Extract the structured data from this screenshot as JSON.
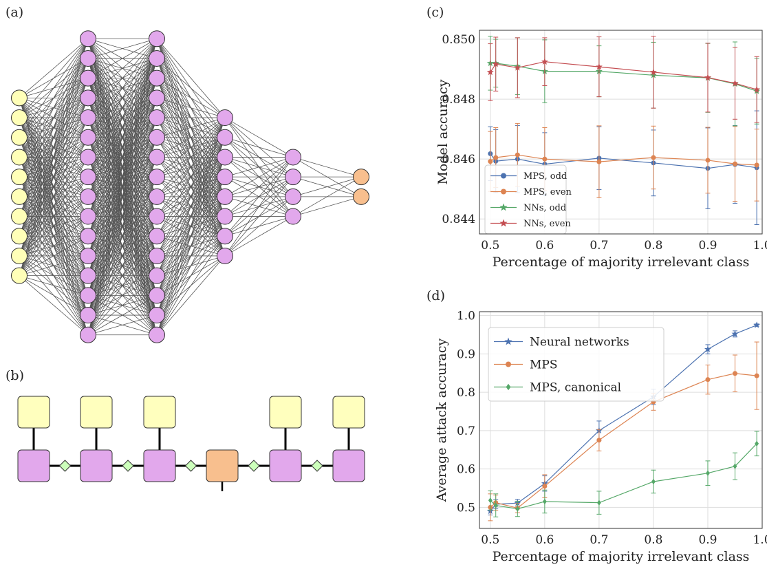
{
  "panels": {
    "a": "(a)",
    "b": "(b)",
    "c": "(c)",
    "d": "(d)"
  },
  "network": {
    "layers": [
      10,
      16,
      16,
      8,
      4,
      2
    ],
    "colors": {
      "input": "#ffffb8",
      "hidden": "#e2a8ec",
      "output": "#f8bf8e",
      "edge": "#555555",
      "stroke": "#333333"
    }
  },
  "mps": {
    "sites": [
      "tensor",
      "tensor",
      "tensor",
      "output",
      "tensor",
      "tensor"
    ],
    "colors": {
      "top": "#ffffbe",
      "core": "#e2a8ec",
      "output": "#f8bf8e",
      "diamond": "#ccffbb"
    }
  },
  "chart_data": [
    {
      "type": "line",
      "panel": "(c)",
      "xlabel": "Percentage of majority irrelevant class",
      "ylabel": "Model accuracy",
      "xlim": [
        0.48,
        1.0
      ],
      "ylim": [
        0.8435,
        0.8503
      ],
      "xticks": [
        "0.5",
        "0.6",
        "0.7",
        "0.8",
        "0.9",
        "1.0"
      ],
      "xtick_values": [
        0.5,
        0.6,
        0.7,
        0.8,
        0.9,
        1.0
      ],
      "yticks": [
        "0.844",
        "0.846",
        "0.848",
        "0.850"
      ],
      "ytick_values": [
        0.844,
        0.846,
        0.848,
        0.85
      ],
      "x": [
        0.5,
        0.51,
        0.55,
        0.6,
        0.7,
        0.8,
        0.9,
        0.95,
        0.99
      ],
      "legend_position": "lower-left",
      "grid": true,
      "series": [
        {
          "name": "MPS, odd",
          "color": "#4c72b0",
          "marker": "circle",
          "values": [
            0.84618,
            0.84593,
            0.846,
            0.84583,
            0.84603,
            0.84587,
            0.84569,
            0.84582,
            0.84571
          ],
          "err": [
            0.0009,
            0.00105,
            0.00112,
            0.00105,
            0.00105,
            0.0011,
            0.00135,
            0.0013,
            0.0019
          ]
        },
        {
          "name": "MPS, even",
          "color": "#dd8452",
          "marker": "circle",
          "values": [
            0.84592,
            0.84605,
            0.84614,
            0.846,
            0.84591,
            0.84605,
            0.84596,
            0.84584,
            0.8458
          ],
          "err": [
            0.001,
            0.001,
            0.00105,
            0.00105,
            0.0012,
            0.00105,
            0.0011,
            0.00125,
            0.0012
          ]
        },
        {
          "name": "NNs, odd",
          "color": "#55a868",
          "marker": "star",
          "values": [
            0.8492,
            0.8492,
            0.8491,
            0.84893,
            0.84893,
            0.8488,
            0.84871,
            0.84851,
            0.84827
          ],
          "err": [
            0.0009,
            0.0008,
            0.00095,
            0.00105,
            0.00085,
            0.0011,
            0.00115,
            0.0014,
            0.0011
          ]
        },
        {
          "name": "NNs, even",
          "color": "#c44e52",
          "marker": "star",
          "values": [
            0.8489,
            0.84917,
            0.84905,
            0.84925,
            0.84908,
            0.8489,
            0.84872,
            0.84853,
            0.84832
          ],
          "err": [
            0.00095,
            0.0009,
            0.001,
            0.0008,
            0.001,
            0.0012,
            0.00115,
            0.0012,
            0.0011
          ]
        }
      ]
    },
    {
      "type": "line",
      "panel": "(d)",
      "xlabel": "Percentage of majority irrelevant class",
      "ylabel": "Average attack accuracy",
      "xlim": [
        0.48,
        1.0
      ],
      "ylim": [
        0.445,
        1.01
      ],
      "xticks": [
        "0.5",
        "0.6",
        "0.7",
        "0.8",
        "0.9",
        "1.0"
      ],
      "xtick_values": [
        0.5,
        0.6,
        0.7,
        0.8,
        0.9,
        1.0
      ],
      "yticks": [
        "0.5",
        "0.6",
        "0.7",
        "0.8",
        "0.9",
        "1.0"
      ],
      "ytick_values": [
        0.5,
        0.6,
        0.7,
        0.8,
        0.9,
        1.0
      ],
      "x": [
        0.5,
        0.51,
        0.55,
        0.6,
        0.7,
        0.8,
        0.9,
        0.95,
        0.99
      ],
      "legend_position": "top-left",
      "grid": true,
      "series": [
        {
          "name": "Neural networks",
          "color": "#4c72b0",
          "marker": "star",
          "values": [
            0.49,
            0.508,
            0.511,
            0.562,
            0.7,
            0.788,
            0.912,
            0.952,
            0.975
          ],
          "err": [
            0.01,
            0.012,
            0.01,
            0.02,
            0.025,
            0.02,
            0.012,
            0.008,
            0.003
          ]
        },
        {
          "name": "MPS",
          "color": "#dd8452",
          "marker": "circle",
          "values": [
            0.5,
            0.512,
            0.498,
            0.555,
            0.675,
            0.775,
            0.833,
            0.849,
            0.843
          ],
          "err": [
            0.035,
            0.02,
            0.012,
            0.03,
            0.028,
            0.022,
            0.038,
            0.048,
            0.088
          ]
        },
        {
          "name": "MPS, canonical",
          "color": "#55a868",
          "marker": "diamond",
          "values": [
            0.518,
            0.505,
            0.496,
            0.515,
            0.512,
            0.567,
            0.589,
            0.607,
            0.666
          ],
          "err": [
            0.025,
            0.03,
            0.02,
            0.03,
            0.03,
            0.03,
            0.032,
            0.035,
            0.032
          ]
        }
      ]
    }
  ]
}
